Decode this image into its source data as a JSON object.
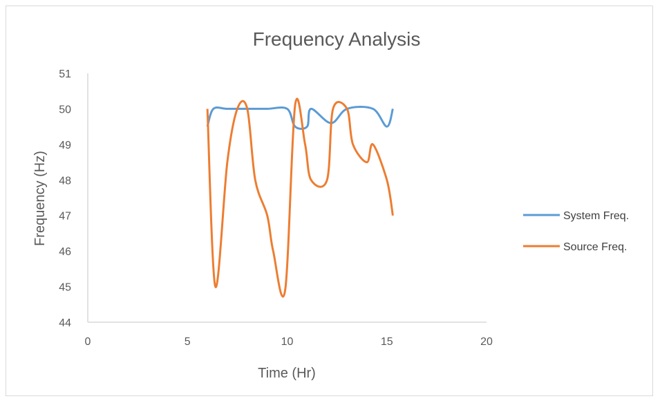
{
  "chart_data": {
    "type": "scatter",
    "title": "Frequency Analysis",
    "xlabel": "Time (Hr)",
    "ylabel": "Frequency (Hz)",
    "xlim": [
      0,
      20
    ],
    "ylim": [
      44,
      51
    ],
    "x_ticks": [
      0,
      5,
      10,
      15,
      20
    ],
    "y_ticks": [
      44,
      45,
      46,
      47,
      48,
      49,
      50,
      51
    ],
    "grid": false,
    "legend_position": "right",
    "series": [
      {
        "name": "System Freq.",
        "color": "#5b9bd5",
        "points": [
          [
            6.0,
            49.5
          ],
          [
            6.3,
            50.0
          ],
          [
            7.0,
            50.0
          ],
          [
            8.0,
            50.0
          ],
          [
            9.0,
            50.0
          ],
          [
            10.0,
            50.0
          ],
          [
            10.4,
            49.5
          ],
          [
            11.0,
            49.5
          ],
          [
            11.2,
            50.0
          ],
          [
            12.2,
            49.6
          ],
          [
            13.0,
            50.0
          ],
          [
            14.3,
            50.0
          ],
          [
            15.0,
            49.5
          ],
          [
            15.3,
            50.0
          ]
        ]
      },
      {
        "name": "Source Freq.",
        "color": "#ed7d31",
        "points": [
          [
            6.0,
            50.0
          ],
          [
            6.4,
            45.0
          ],
          [
            7.0,
            48.5
          ],
          [
            7.5,
            50.0
          ],
          [
            8.0,
            50.0
          ],
          [
            8.4,
            48.0
          ],
          [
            9.0,
            47.0
          ],
          [
            9.3,
            46.0
          ],
          [
            9.9,
            44.9
          ],
          [
            10.4,
            50.1
          ],
          [
            10.9,
            49.0
          ],
          [
            11.2,
            48.0
          ],
          [
            12.0,
            48.0
          ],
          [
            12.3,
            50.0
          ],
          [
            13.0,
            50.0
          ],
          [
            13.3,
            49.0
          ],
          [
            14.0,
            48.5
          ],
          [
            14.3,
            49.0
          ],
          [
            15.0,
            48.0
          ],
          [
            15.3,
            47.0
          ]
        ]
      }
    ]
  }
}
